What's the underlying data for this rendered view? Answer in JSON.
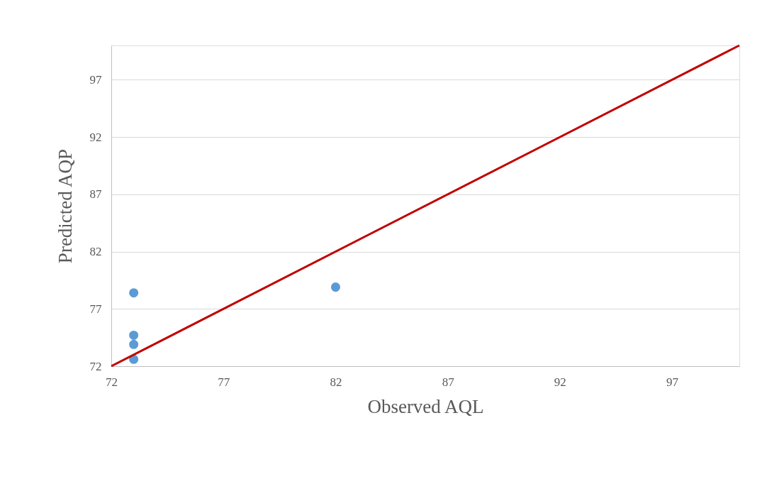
{
  "chart_data": {
    "type": "scatter",
    "xlabel": "Observed AQL",
    "ylabel": "Predicted AQP",
    "xlim": [
      72,
      100
    ],
    "ylim": [
      72,
      100
    ],
    "xticks": [
      72,
      77,
      82,
      87,
      92,
      97
    ],
    "yticks": [
      72,
      77,
      82,
      87,
      92,
      97
    ],
    "grid": "y",
    "marker": "circle",
    "series": [
      {
        "color": "#5b9bd5",
        "x": [
          73,
          73,
          73,
          73,
          82
        ],
        "values": [
          78.4,
          74.7,
          73.9,
          72.6,
          78.9
        ]
      },
      {
        "type": "line",
        "color": "#c00000",
        "x": [
          72,
          100
        ],
        "values": [
          72,
          100
        ],
        "line_style": "solid",
        "marker": "none"
      }
    ]
  }
}
